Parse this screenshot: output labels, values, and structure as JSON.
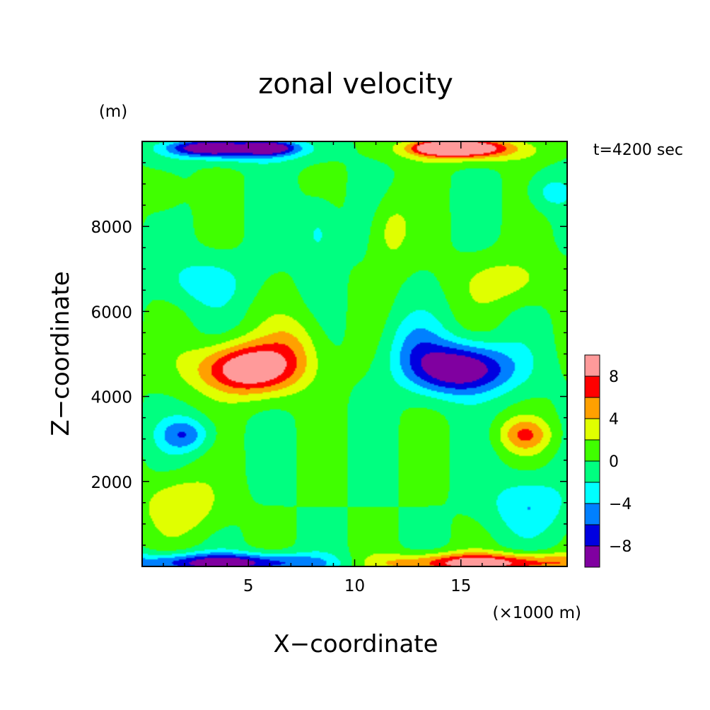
{
  "chart_data": {
    "type": "heatmap",
    "title": "zonal velocity",
    "xlabel": "X−coordinate",
    "ylabel": "Z−coordinate",
    "x_unit": "(×1000 m)",
    "y_unit": "(m)",
    "time_label": "t=4200 sec",
    "xlim": [
      0,
      20
    ],
    "ylim": [
      0,
      10000
    ],
    "x_ticks": [
      5,
      10,
      15
    ],
    "x_tick_labels": [
      "5",
      "10",
      "15"
    ],
    "y_ticks": [
      2000,
      4000,
      6000,
      8000
    ],
    "y_tick_labels": [
      "2000",
      "4000",
      "6000",
      "8000"
    ],
    "colorbar": {
      "levels": [
        -10,
        -8,
        -6,
        -4,
        -2,
        0,
        2,
        4,
        6,
        8,
        10
      ],
      "colors": [
        "#8000a0",
        "#0000e0",
        "#0080ff",
        "#00ffff",
        "#00ff80",
        "#40ff00",
        "#e0ff00",
        "#ffa000",
        "#ff0000",
        "#ff9a9a"
      ],
      "tick_values": [
        -8,
        -4,
        0,
        4,
        8
      ],
      "tick_labels": [
        "−8",
        "−4",
        "0",
        "4",
        "8"
      ]
    },
    "features": [
      {
        "x": 3.0,
        "z": 9850,
        "u": -8,
        "sx": 1.8,
        "sz": 180
      },
      {
        "x": 6.0,
        "z": 9850,
        "u": -8,
        "sx": 1.2,
        "sz": 150
      },
      {
        "x": 4.8,
        "z": 9800,
        "u": -5,
        "sx": 3.2,
        "sz": 300
      },
      {
        "x": 15.2,
        "z": 9850,
        "u": 8,
        "sx": 1.8,
        "sz": 180
      },
      {
        "x": 14.0,
        "z": 9850,
        "u": 8,
        "sx": 1.2,
        "sz": 150
      },
      {
        "x": 15.2,
        "z": 9800,
        "u": 5,
        "sx": 3.2,
        "sz": 300
      },
      {
        "x": 0.9,
        "z": 8800,
        "u": 2.8,
        "sx": 1.0,
        "sz": 450
      },
      {
        "x": 19.1,
        "z": 8800,
        "u": -2.8,
        "sx": 1.0,
        "sz": 450
      },
      {
        "x": 8.3,
        "z": 7900,
        "u": -3,
        "sx": 0.9,
        "sz": 800
      },
      {
        "x": 11.7,
        "z": 7900,
        "u": 3,
        "sx": 0.9,
        "sz": 800
      },
      {
        "x": 2.8,
        "z": 6700,
        "u": -3,
        "sx": 2.2,
        "sz": 600
      },
      {
        "x": 17.2,
        "z": 6700,
        "u": 3,
        "sx": 2.2,
        "sz": 600
      },
      {
        "x": 5.0,
        "z": 4650,
        "u": 11,
        "sx": 2.4,
        "sz": 600
      },
      {
        "x": 7.2,
        "z": 5300,
        "u": 3,
        "sx": 1.4,
        "sz": 700
      },
      {
        "x": 15.0,
        "z": 4650,
        "u": -11,
        "sx": 2.4,
        "sz": 600
      },
      {
        "x": 12.8,
        "z": 5300,
        "u": -3,
        "sx": 1.4,
        "sz": 700
      },
      {
        "x": 2.0,
        "z": 3100,
        "u": -5.5,
        "sx": 1.2,
        "sz": 400
      },
      {
        "x": 18.0,
        "z": 3100,
        "u": 5.5,
        "sx": 1.2,
        "sz": 400
      },
      {
        "x": 1.8,
        "z": 1450,
        "u": 4,
        "sx": 1.8,
        "sz": 700
      },
      {
        "x": 18.2,
        "z": 1450,
        "u": -4,
        "sx": 1.8,
        "sz": 700
      },
      {
        "x": 4.0,
        "z": 80,
        "u": -9.5,
        "sx": 5.0,
        "sz": 230
      },
      {
        "x": 16.0,
        "z": 80,
        "u": 9.5,
        "sx": 5.0,
        "sz": 230
      }
    ]
  }
}
